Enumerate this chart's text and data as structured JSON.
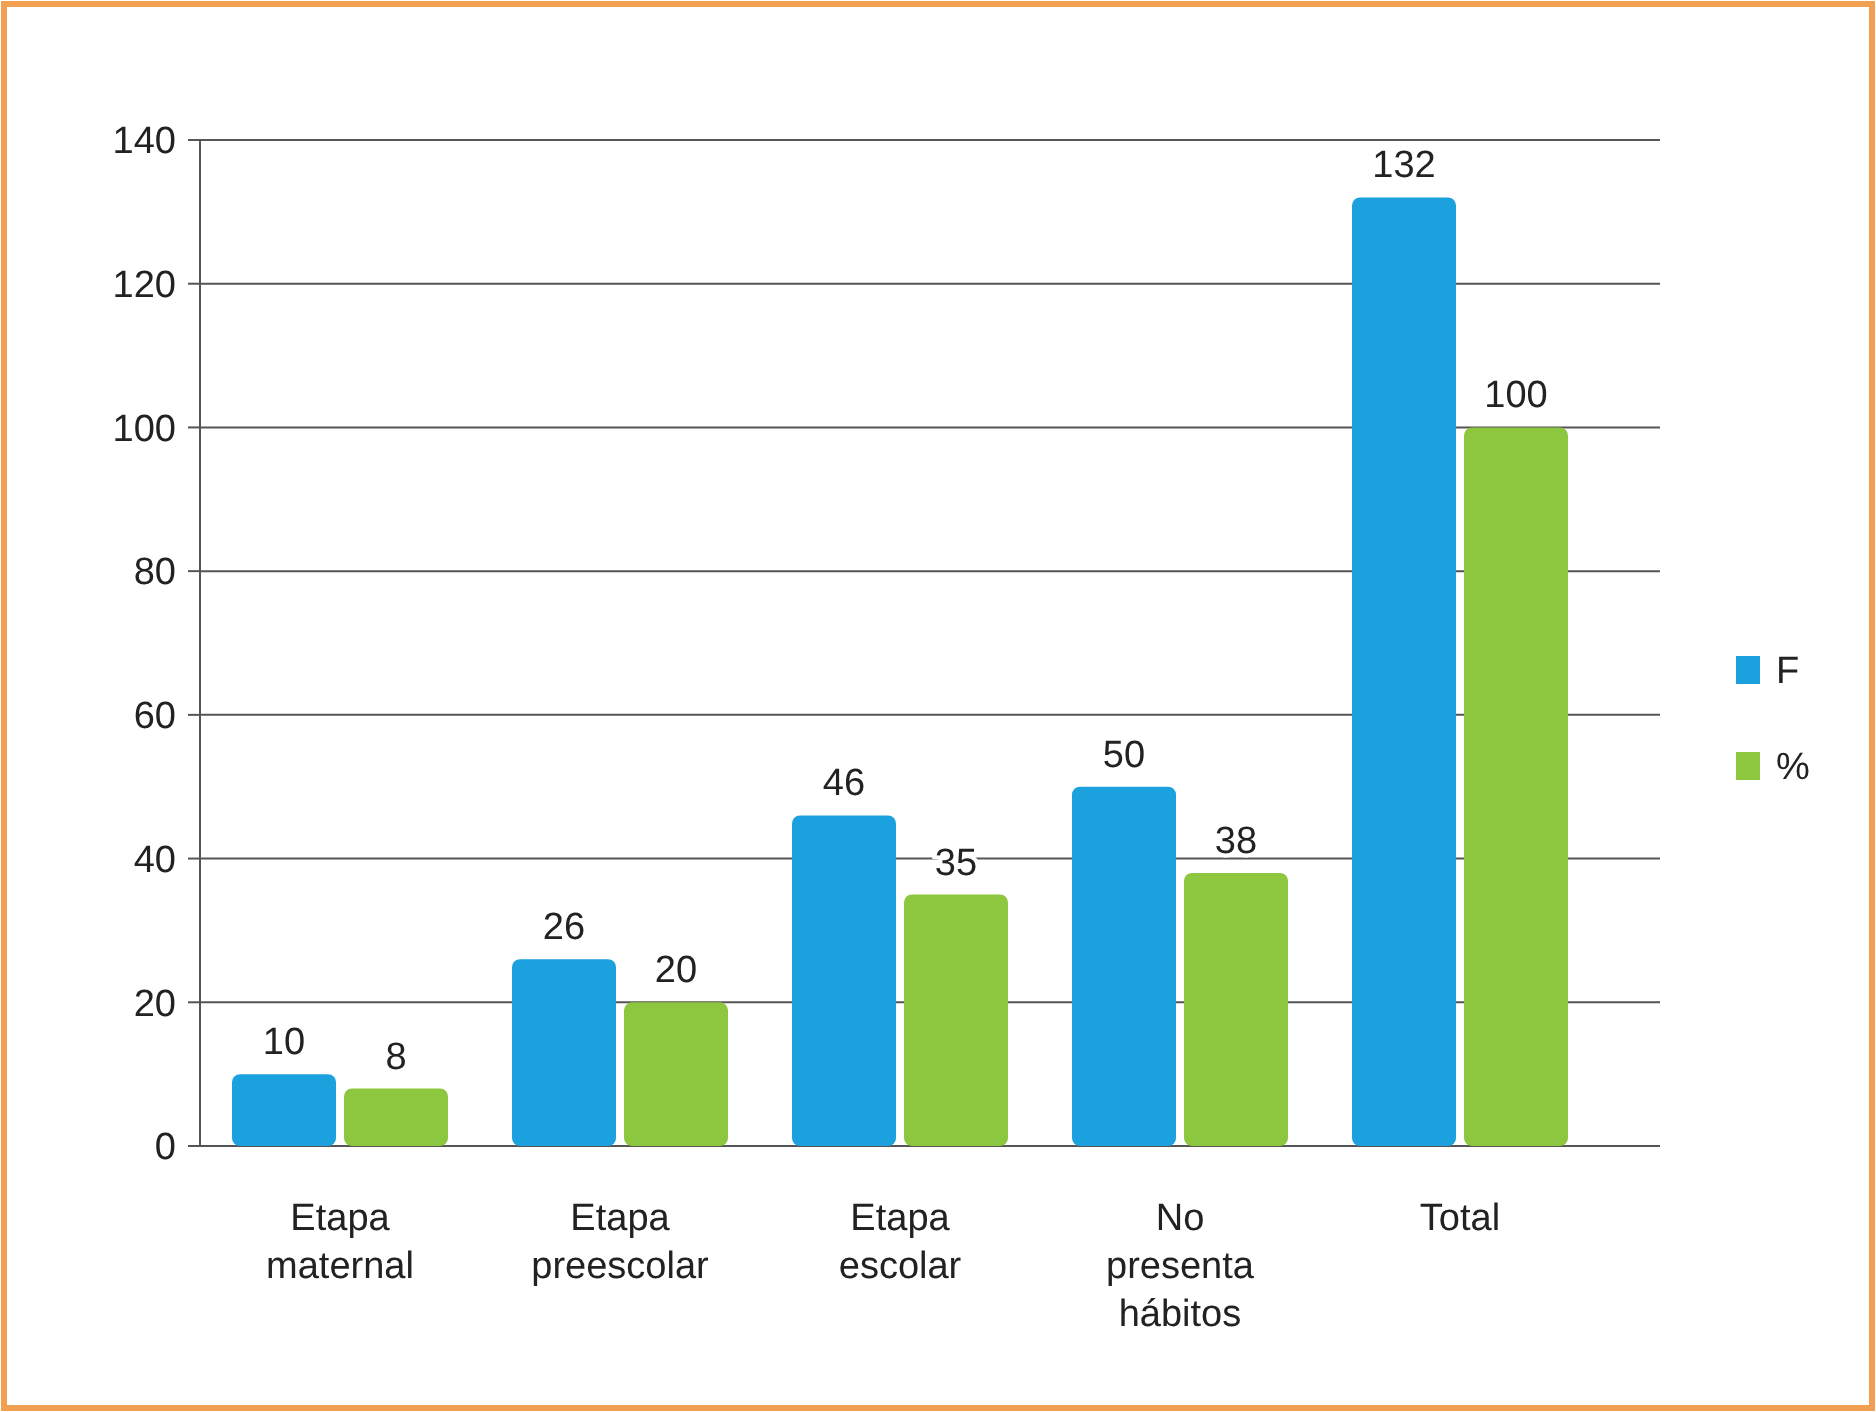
{
  "chart_data": {
    "type": "bar",
    "categories": [
      "Etapa maternal",
      "Etapa preescolar",
      "Etapa escolar",
      "No presenta hábitos",
      "Total"
    ],
    "series": [
      {
        "name": "F",
        "color": "#1ba1dd",
        "values": [
          10,
          26,
          46,
          50,
          132
        ]
      },
      {
        "name": "%",
        "color": "#8dc63f",
        "values": [
          8,
          20,
          35,
          38,
          100
        ]
      }
    ],
    "ylim": [
      0,
      140
    ],
    "yticks": [
      0,
      20,
      40,
      60,
      80,
      100,
      120,
      140
    ],
    "grid": "y",
    "legend": "right",
    "data_labels": true
  }
}
